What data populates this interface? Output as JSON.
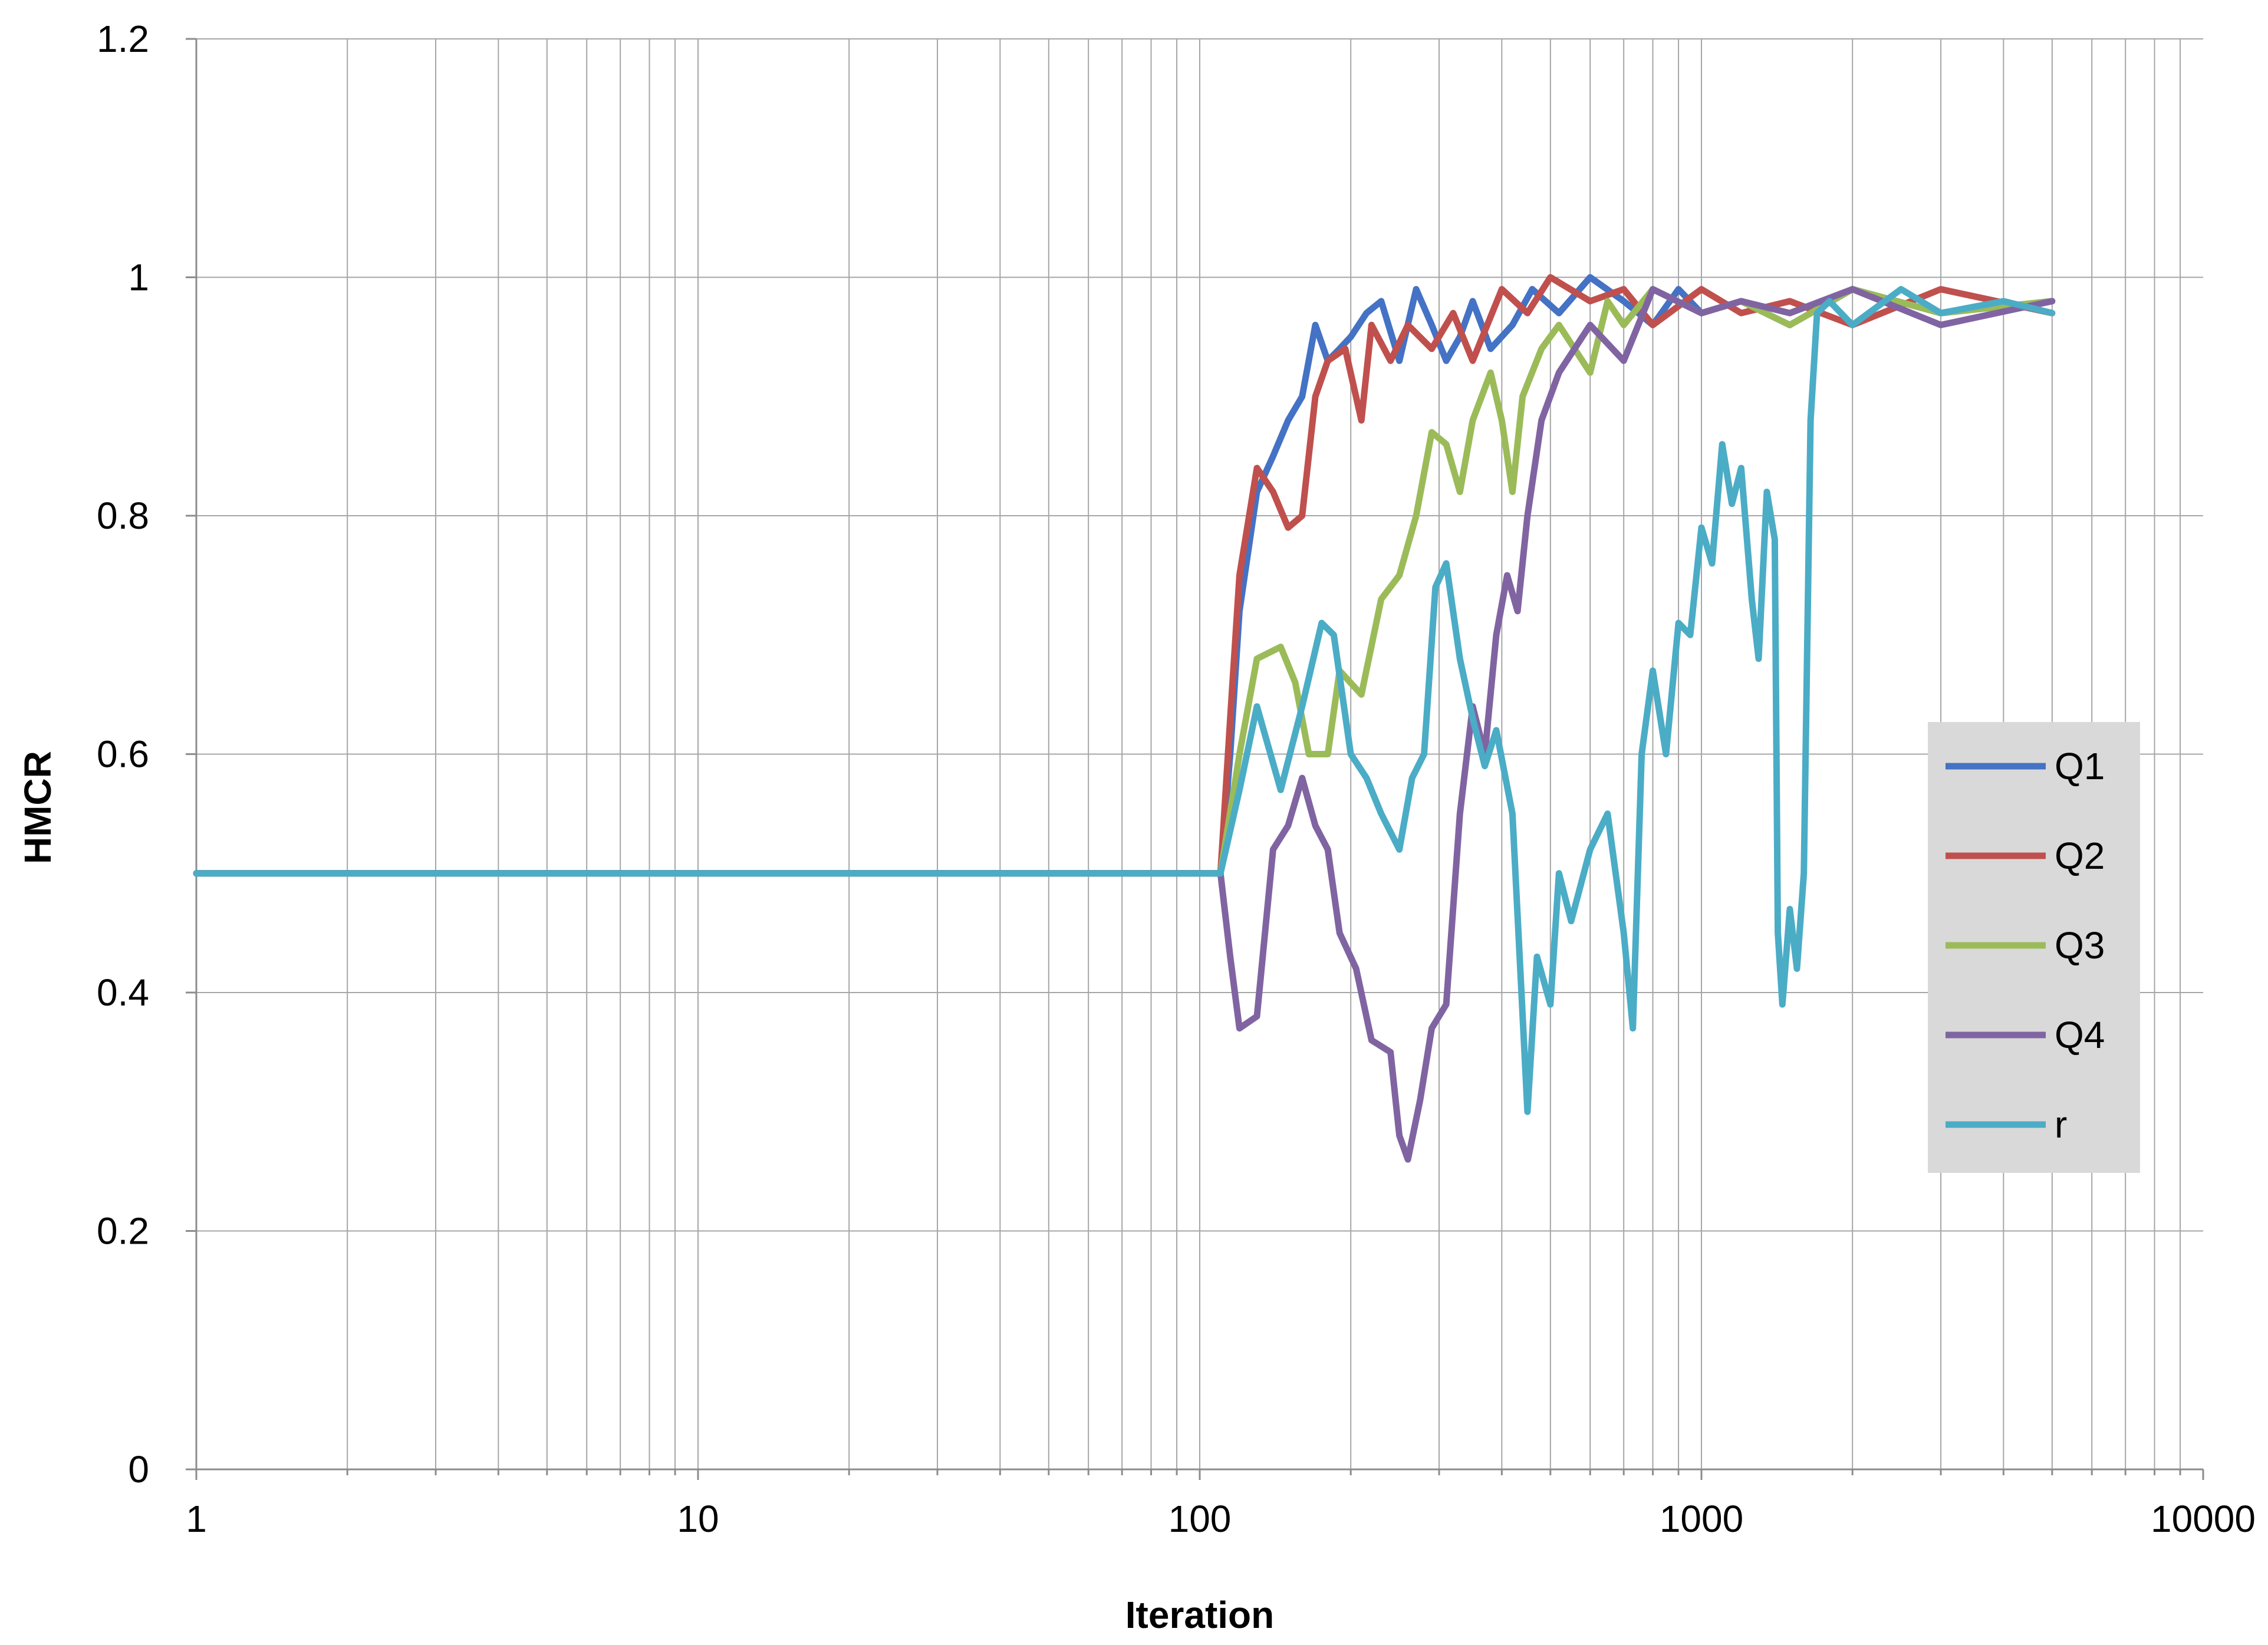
{
  "chart_data": {
    "type": "line",
    "title": "",
    "xlabel": "Iteration",
    "ylabel": "HMCR",
    "x_scale": "log",
    "xlim": [
      1,
      10000
    ],
    "ylim": [
      0,
      1.2
    ],
    "x_ticks": [
      1,
      10,
      100,
      1000,
      10000
    ],
    "x_tick_labels": [
      "1",
      "10",
      "100",
      "1000",
      "10000"
    ],
    "y_ticks": [
      0,
      0.2,
      0.4,
      0.6,
      0.8,
      1,
      1.2
    ],
    "y_tick_labels": [
      "0",
      "0.2",
      "0.4",
      "0.6",
      "0.8",
      "1",
      "1.2"
    ],
    "grid": true,
    "legend_position": "right",
    "series": [
      {
        "name": "Q1",
        "color": "#4472C4",
        "points": [
          [
            1,
            0.5
          ],
          [
            110,
            0.5
          ],
          [
            115,
            0.6
          ],
          [
            120,
            0.72
          ],
          [
            130,
            0.82
          ],
          [
            140,
            0.85
          ],
          [
            150,
            0.88
          ],
          [
            160,
            0.9
          ],
          [
            170,
            0.96
          ],
          [
            180,
            0.93
          ],
          [
            190,
            0.94
          ],
          [
            200,
            0.95
          ],
          [
            215,
            0.97
          ],
          [
            230,
            0.98
          ],
          [
            250,
            0.93
          ],
          [
            270,
            0.99
          ],
          [
            290,
            0.96
          ],
          [
            310,
            0.93
          ],
          [
            330,
            0.95
          ],
          [
            350,
            0.98
          ],
          [
            380,
            0.94
          ],
          [
            420,
            0.96
          ],
          [
            460,
            0.99
          ],
          [
            520,
            0.97
          ],
          [
            600,
            1.0
          ],
          [
            700,
            0.98
          ],
          [
            800,
            0.96
          ],
          [
            900,
            0.99
          ],
          [
            1000,
            0.97
          ],
          [
            1200,
            0.98
          ],
          [
            1500,
            0.96
          ],
          [
            2000,
            0.99
          ],
          [
            3000,
            0.97
          ],
          [
            5000,
            0.98
          ]
        ]
      },
      {
        "name": "Q2",
        "color": "#C0504D",
        "points": [
          [
            1,
            0.5
          ],
          [
            110,
            0.5
          ],
          [
            115,
            0.63
          ],
          [
            120,
            0.75
          ],
          [
            130,
            0.84
          ],
          [
            140,
            0.82
          ],
          [
            150,
            0.79
          ],
          [
            160,
            0.8
          ],
          [
            170,
            0.9
          ],
          [
            180,
            0.93
          ],
          [
            195,
            0.94
          ],
          [
            210,
            0.88
          ],
          [
            220,
            0.96
          ],
          [
            240,
            0.93
          ],
          [
            260,
            0.96
          ],
          [
            290,
            0.94
          ],
          [
            320,
            0.97
          ],
          [
            350,
            0.93
          ],
          [
            400,
            0.99
          ],
          [
            450,
            0.97
          ],
          [
            500,
            1.0
          ],
          [
            600,
            0.98
          ],
          [
            700,
            0.99
          ],
          [
            800,
            0.96
          ],
          [
            1000,
            0.99
          ],
          [
            1200,
            0.97
          ],
          [
            1500,
            0.98
          ],
          [
            2000,
            0.96
          ],
          [
            3000,
            0.99
          ],
          [
            5000,
            0.97
          ]
        ]
      },
      {
        "name": "Q3",
        "color": "#9BBB59",
        "points": [
          [
            1,
            0.5
          ],
          [
            110,
            0.5
          ],
          [
            120,
            0.6
          ],
          [
            130,
            0.68
          ],
          [
            145,
            0.69
          ],
          [
            155,
            0.66
          ],
          [
            165,
            0.6
          ],
          [
            180,
            0.6
          ],
          [
            190,
            0.67
          ],
          [
            210,
            0.65
          ],
          [
            230,
            0.73
          ],
          [
            250,
            0.75
          ],
          [
            270,
            0.8
          ],
          [
            290,
            0.87
          ],
          [
            310,
            0.86
          ],
          [
            330,
            0.82
          ],
          [
            350,
            0.88
          ],
          [
            380,
            0.92
          ],
          [
            400,
            0.88
          ],
          [
            420,
            0.82
          ],
          [
            440,
            0.9
          ],
          [
            480,
            0.94
          ],
          [
            520,
            0.96
          ],
          [
            600,
            0.92
          ],
          [
            650,
            0.98
          ],
          [
            700,
            0.96
          ],
          [
            800,
            0.99
          ],
          [
            1000,
            0.97
          ],
          [
            1200,
            0.98
          ],
          [
            1500,
            0.96
          ],
          [
            2000,
            0.99
          ],
          [
            3000,
            0.97
          ],
          [
            5000,
            0.98
          ]
        ]
      },
      {
        "name": "Q4",
        "color": "#8064A2",
        "points": [
          [
            1,
            0.5
          ],
          [
            110,
            0.5
          ],
          [
            115,
            0.43
          ],
          [
            120,
            0.37
          ],
          [
            130,
            0.38
          ],
          [
            140,
            0.52
          ],
          [
            150,
            0.54
          ],
          [
            160,
            0.58
          ],
          [
            170,
            0.54
          ],
          [
            180,
            0.52
          ],
          [
            190,
            0.45
          ],
          [
            205,
            0.42
          ],
          [
            220,
            0.36
          ],
          [
            240,
            0.35
          ],
          [
            250,
            0.28
          ],
          [
            260,
            0.26
          ],
          [
            275,
            0.31
          ],
          [
            290,
            0.37
          ],
          [
            310,
            0.39
          ],
          [
            330,
            0.55
          ],
          [
            350,
            0.64
          ],
          [
            370,
            0.6
          ],
          [
            390,
            0.7
          ],
          [
            410,
            0.75
          ],
          [
            430,
            0.72
          ],
          [
            450,
            0.8
          ],
          [
            480,
            0.88
          ],
          [
            520,
            0.92
          ],
          [
            600,
            0.96
          ],
          [
            700,
            0.93
          ],
          [
            800,
            0.99
          ],
          [
            1000,
            0.97
          ],
          [
            1200,
            0.98
          ],
          [
            1500,
            0.97
          ],
          [
            2000,
            0.99
          ],
          [
            3000,
            0.96
          ],
          [
            5000,
            0.98
          ]
        ]
      },
      {
        "name": "r",
        "color": "#4BACC6",
        "points": [
          [
            1,
            0.5
          ],
          [
            110,
            0.5
          ],
          [
            120,
            0.57
          ],
          [
            130,
            0.64
          ],
          [
            145,
            0.57
          ],
          [
            160,
            0.64
          ],
          [
            175,
            0.71
          ],
          [
            185,
            0.7
          ],
          [
            200,
            0.6
          ],
          [
            215,
            0.58
          ],
          [
            230,
            0.55
          ],
          [
            250,
            0.52
          ],
          [
            265,
            0.58
          ],
          [
            280,
            0.6
          ],
          [
            295,
            0.74
          ],
          [
            310,
            0.76
          ],
          [
            330,
            0.68
          ],
          [
            350,
            0.63
          ],
          [
            370,
            0.59
          ],
          [
            390,
            0.62
          ],
          [
            420,
            0.55
          ],
          [
            450,
            0.3
          ],
          [
            470,
            0.43
          ],
          [
            500,
            0.39
          ],
          [
            520,
            0.5
          ],
          [
            550,
            0.46
          ],
          [
            600,
            0.52
          ],
          [
            650,
            0.55
          ],
          [
            700,
            0.45
          ],
          [
            730,
            0.37
          ],
          [
            760,
            0.6
          ],
          [
            800,
            0.67
          ],
          [
            850,
            0.6
          ],
          [
            900,
            0.71
          ],
          [
            950,
            0.7
          ],
          [
            1000,
            0.79
          ],
          [
            1050,
            0.76
          ],
          [
            1100,
            0.86
          ],
          [
            1150,
            0.81
          ],
          [
            1200,
            0.84
          ],
          [
            1260,
            0.73
          ],
          [
            1300,
            0.68
          ],
          [
            1350,
            0.82
          ],
          [
            1400,
            0.78
          ],
          [
            1420,
            0.45
          ],
          [
            1450,
            0.39
          ],
          [
            1500,
            0.47
          ],
          [
            1550,
            0.42
          ],
          [
            1600,
            0.5
          ],
          [
            1650,
            0.88
          ],
          [
            1700,
            0.97
          ],
          [
            1800,
            0.98
          ],
          [
            2000,
            0.96
          ],
          [
            2500,
            0.99
          ],
          [
            3000,
            0.97
          ],
          [
            4000,
            0.98
          ],
          [
            5000,
            0.97
          ]
        ]
      }
    ]
  }
}
